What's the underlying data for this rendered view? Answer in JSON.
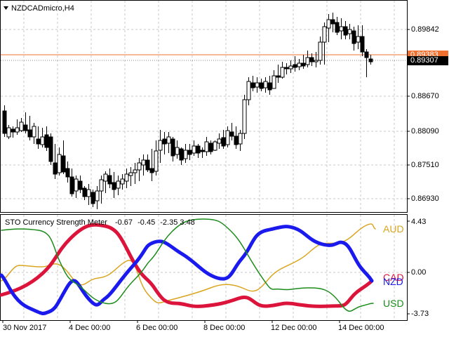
{
  "main": {
    "symbol_label": "NZDCADmicro,H4",
    "price_ticks": [
      "0.89842",
      "0.88670",
      "0.88090",
      "0.87510",
      "0.86930"
    ],
    "bid_tag": "0.89307",
    "ask_tag": "0.89383",
    "colors": {
      "ask_line": "#f07030",
      "bull": "#ffffff",
      "bear": "#000000"
    }
  },
  "indicator": {
    "title": "STO Currency Strength Meter",
    "values": [
      "-0.67",
      "-0.45",
      "-2.35",
      "3.48"
    ],
    "scale_ticks": [
      "4.43",
      "0.00",
      "-3.73"
    ],
    "legend": [
      {
        "name": "AUD",
        "color": "#daa520"
      },
      {
        "name": "CAD",
        "color": "#dc143c"
      },
      {
        "name": "NZD",
        "color": "#1a1aee"
      },
      {
        "name": "USD",
        "color": "#1a8c1a"
      }
    ]
  },
  "time_axis": [
    "30 Nov 2017",
    "4 Dec 00:00",
    "6 Dec 00:00",
    "8 Dec 00:00",
    "12 Dec 00:00",
    "14 Dec 00:00"
  ]
}
